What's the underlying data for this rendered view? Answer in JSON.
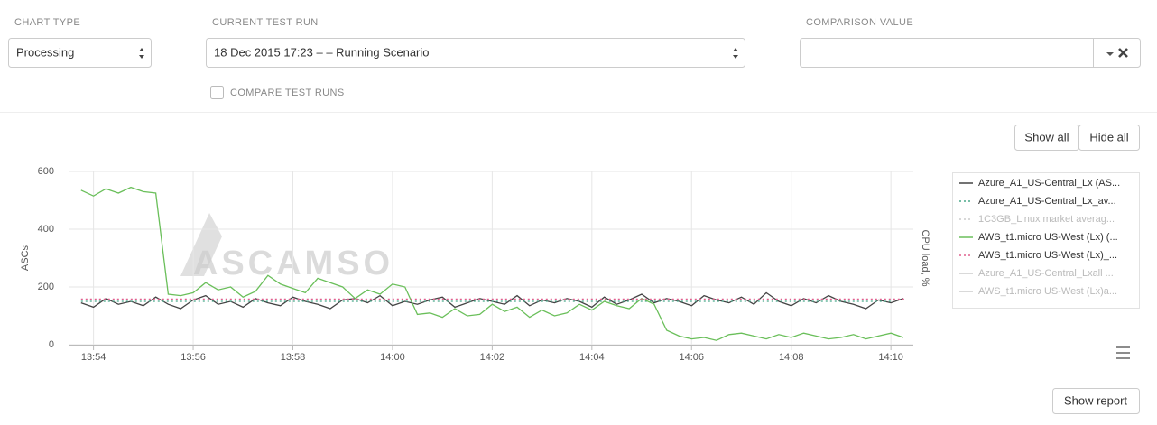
{
  "controls": {
    "chart_type": {
      "label": "CHART TYPE",
      "value": "Processing"
    },
    "current_test_run": {
      "label": "CURRENT TEST RUN",
      "value": "18 Dec 2015 17:23 – – Running Scenario"
    },
    "comparison_value": {
      "label": "COMPARISON VALUE"
    },
    "compare_test_runs": {
      "label": "COMPARE TEST RUNS",
      "checked": false
    }
  },
  "buttons": {
    "show_all": "Show all",
    "hide_all": "Hide all",
    "show_report": "Show report"
  },
  "chart_data": {
    "type": "line",
    "y_label": "ASCs",
    "y2_label": "CPU load, %",
    "watermark": "ASCAMSO",
    "grid": true,
    "xlim": [
      833.5,
      850.45
    ],
    "xticks": [
      {
        "value": 834,
        "label": "13:54"
      },
      {
        "value": 836,
        "label": "13:56"
      },
      {
        "value": 838,
        "label": "13:58"
      },
      {
        "value": 840,
        "label": "14:00"
      },
      {
        "value": 842,
        "label": "14:02"
      },
      {
        "value": 844,
        "label": "14:04"
      },
      {
        "value": 846,
        "label": "14:06"
      },
      {
        "value": 848,
        "label": "14:08"
      },
      {
        "value": 850,
        "label": "14:10"
      }
    ],
    "ylim": [
      0,
      600
    ],
    "yticks": [
      0,
      200,
      400,
      600
    ],
    "x": [
      833.75,
      834,
      834.25,
      834.5,
      834.75,
      835,
      835.25,
      835.5,
      835.75,
      836,
      836.25,
      836.5,
      836.75,
      837,
      837.25,
      837.5,
      837.75,
      838,
      838.25,
      838.5,
      838.75,
      839,
      839.25,
      839.5,
      839.75,
      840,
      840.25,
      840.5,
      840.75,
      841,
      841.25,
      841.5,
      841.75,
      842,
      842.25,
      842.5,
      842.75,
      843,
      843.25,
      843.5,
      843.75,
      844,
      844.25,
      844.5,
      844.75,
      845,
      845.25,
      845.5,
      845.75,
      846,
      846.25,
      846.5,
      846.75,
      847,
      847.25,
      847.5,
      847.75,
      848,
      848.25,
      848.5,
      848.75,
      849,
      849.25,
      849.5,
      849.75,
      850,
      850.25
    ],
    "series": [
      {
        "name": "Azure_A1_US-Central_Lx (AS...",
        "color": "#444444",
        "dash": "solid",
        "visible": true,
        "values": [
          145,
          130,
          160,
          140,
          150,
          135,
          165,
          140,
          125,
          155,
          170,
          140,
          150,
          130,
          160,
          145,
          135,
          165,
          150,
          140,
          125,
          155,
          160,
          145,
          170,
          135,
          150,
          140,
          155,
          165,
          130,
          145,
          160,
          150,
          140,
          170,
          135,
          155,
          145,
          160,
          150,
          130,
          165,
          140,
          155,
          175,
          145,
          160,
          150,
          135,
          170,
          155,
          145,
          165,
          140,
          180,
          150,
          135,
          160,
          145,
          170,
          150,
          140,
          125,
          155,
          145,
          160
        ]
      },
      {
        "name": "Azure_A1_US-Central_Lx_av...",
        "color": "#4aa88a",
        "dash": "dotted",
        "visible": true,
        "x": [
          833.75,
          850.0
        ],
        "values": [
          150,
          150
        ]
      },
      {
        "name": "1C3GB_Linux market averag...",
        "color": "#cccccc",
        "dash": "dotted",
        "visible": false
      },
      {
        "name": "AWS_t1.micro US-West (Lx) (...",
        "color": "#6abf5a",
        "dash": "solid",
        "visible": true,
        "values": [
          535,
          515,
          540,
          525,
          545,
          530,
          525,
          175,
          170,
          180,
          215,
          190,
          200,
          165,
          185,
          240,
          210,
          195,
          180,
          230,
          215,
          200,
          160,
          190,
          175,
          210,
          200,
          105,
          110,
          95,
          125,
          100,
          105,
          140,
          115,
          130,
          95,
          120,
          100,
          110,
          140,
          120,
          150,
          135,
          125,
          160,
          140,
          50,
          30,
          20,
          25,
          15,
          35,
          40,
          30,
          20,
          35,
          25,
          40,
          30,
          20,
          25,
          35,
          20,
          30,
          40,
          25
        ]
      },
      {
        "name": "AWS_t1.micro US-West (Lx)_...",
        "color": "#e0608f",
        "dash": "dotted",
        "visible": true,
        "x": [
          833.75,
          850.3
        ],
        "values": [
          158,
          158
        ]
      },
      {
        "name": "Azure_A1_US-Central_Lxall ...",
        "color": "#cccccc",
        "dash": "solid",
        "visible": false
      },
      {
        "name": "AWS_t1.micro US-West (Lx)a...",
        "color": "#cccccc",
        "dash": "solid",
        "visible": false
      }
    ]
  }
}
